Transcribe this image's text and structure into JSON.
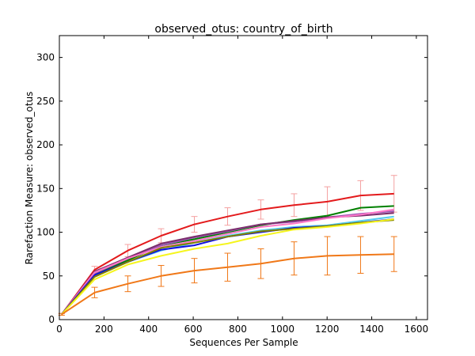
{
  "chart_data": {
    "type": "line",
    "title": "observed_otus: country_of_birth",
    "xlabel": "Sequences Per Sample",
    "ylabel": "Rarefaction Measure: observed_otus",
    "xlim": [
      0,
      1650
    ],
    "ylim": [
      0,
      325
    ],
    "xticks": [
      0,
      200,
      400,
      600,
      800,
      1000,
      1200,
      1400,
      1600
    ],
    "yticks": [
      0,
      50,
      100,
      150,
      200,
      250,
      300
    ],
    "x": [
      10,
      158,
      307,
      456,
      605,
      754,
      903,
      1052,
      1201,
      1350,
      1500
    ],
    "series": [
      {
        "color": "#e31a1c",
        "values": [
          6,
          57,
          79,
          96,
          109,
          118,
          126,
          131,
          135,
          142,
          144
        ],
        "err": [
          1,
          4,
          7,
          8,
          9,
          10,
          11,
          13,
          17,
          17,
          21
        ],
        "err_color": "#f4a0a0"
      },
      {
        "color": "#008000",
        "values": [
          6,
          52,
          68,
          85,
          92,
          100,
          108,
          114,
          119,
          128,
          130
        ]
      },
      {
        "color": "#9b59b6",
        "values": [
          6,
          53,
          70,
          85,
          94,
          101,
          109,
          112,
          117,
          121,
          124
        ]
      },
      {
        "color": "#7b2d6b",
        "values": [
          6,
          55,
          71,
          87,
          95,
          102,
          109,
          113,
          117,
          119,
          122
        ]
      },
      {
        "color": "#ff77c8",
        "values": [
          6,
          54,
          70,
          83,
          90,
          98,
          106,
          110,
          116,
          120,
          126
        ]
      },
      {
        "color": "#55ccee",
        "values": [
          6,
          50,
          66,
          79,
          88,
          96,
          102,
          106,
          108,
          113,
          118
        ]
      },
      {
        "color": "#1010e0",
        "values": [
          6,
          51,
          66,
          80,
          85,
          95,
          100,
          105,
          107,
          111,
          115
        ]
      },
      {
        "color": "#808000",
        "values": [
          6,
          49,
          66,
          82,
          88,
          95,
          101,
          104,
          107,
          111,
          114
        ]
      },
      {
        "color": "#f5f51e",
        "values": [
          6,
          46,
          63,
          73,
          81,
          87,
          96,
          103,
          106,
          110,
          115
        ]
      },
      {
        "color": "#f07818",
        "values": [
          6,
          31,
          41,
          50,
          56,
          60,
          64,
          70,
          73,
          74,
          75
        ],
        "err": [
          1,
          6,
          9,
          12,
          14,
          16,
          17,
          19,
          22,
          21,
          20
        ],
        "err_color": "#f07818"
      }
    ]
  }
}
